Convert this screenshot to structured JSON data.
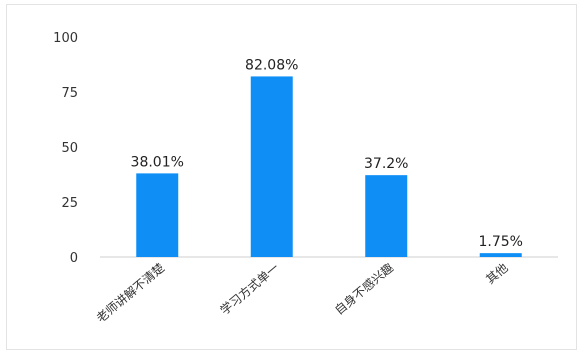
{
  "chart_data": {
    "type": "bar",
    "title": "",
    "xlabel": "",
    "ylabel": "",
    "categories": [
      "老师讲解不清楚",
      "学习方式单一",
      "自身不感兴趣",
      "其他"
    ],
    "values": [
      38.01,
      82.08,
      37.2,
      1.75
    ],
    "data_labels": [
      "38.01%",
      "82.08%",
      "37.2%",
      "1.75%"
    ],
    "y_ticks": [
      "0",
      "25",
      "50",
      "75",
      "100"
    ],
    "ylim": [
      0,
      100
    ],
    "grid": false,
    "legend": "none",
    "colors": {
      "bar": "#0f8ff6",
      "axis": "#cfcfcf",
      "tick_text": "#333333",
      "label_text": "#222222"
    }
  }
}
